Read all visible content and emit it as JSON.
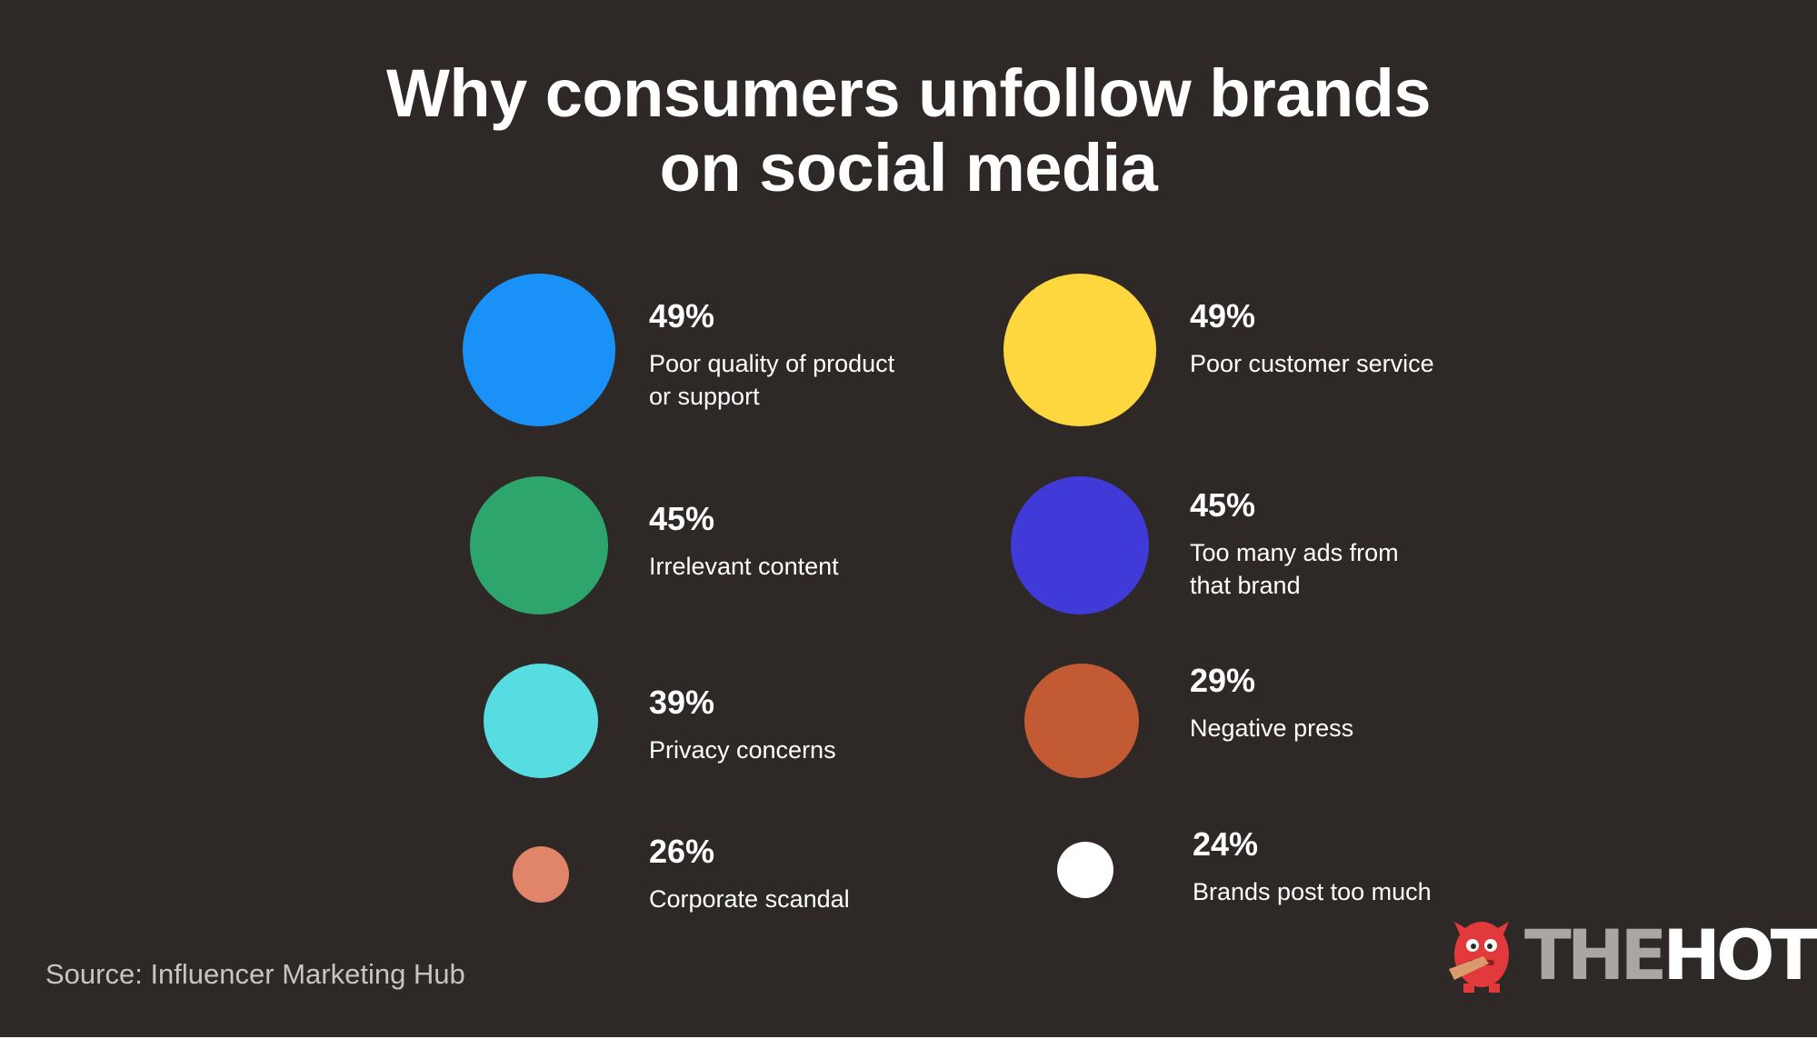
{
  "chart_data": {
    "type": "bubble",
    "title_lines": [
      "Why consumers unfollow brands",
      "on social media"
    ],
    "value_unit": "%",
    "items": [
      {
        "value": 49,
        "value_label": "49%",
        "label_lines": [
          "Poor quality of product",
          "or support"
        ],
        "color": "#1a91f7"
      },
      {
        "value": 49,
        "value_label": "49%",
        "label_lines": [
          "Poor customer service"
        ],
        "color": "#fed73f"
      },
      {
        "value": 45,
        "value_label": "45%",
        "label_lines": [
          "Irrelevant content"
        ],
        "color": "#2ea56c"
      },
      {
        "value": 45,
        "value_label": "45%",
        "label_lines": [
          "Too many ads from",
          "that brand"
        ],
        "color": "#3f3ad8"
      },
      {
        "value": 39,
        "value_label": "39%",
        "label_lines": [
          "Privacy concerns"
        ],
        "color": "#57dde1"
      },
      {
        "value": 29,
        "value_label": "29%",
        "label_lines": [
          "Negative press"
        ],
        "color": "#c25a33"
      },
      {
        "value": 26,
        "value_label": "26%",
        "label_lines": [
          "Corporate scandal"
        ],
        "color": "#e0856a"
      },
      {
        "value": 24,
        "value_label": "24%",
        "label_lines": [
          "Brands post too much"
        ],
        "color": "#ffffff"
      }
    ]
  },
  "source": "Source: Influencer Marketing Hub",
  "logo": {
    "icon": "hoth-monster-icon",
    "word_the": "THE",
    "word_hoth": "HOTH",
    "icon_color": "#e23a3c"
  },
  "colors": {
    "background": "#2e2927",
    "text": "#ffffff",
    "source_text": "#c9c4c1"
  }
}
